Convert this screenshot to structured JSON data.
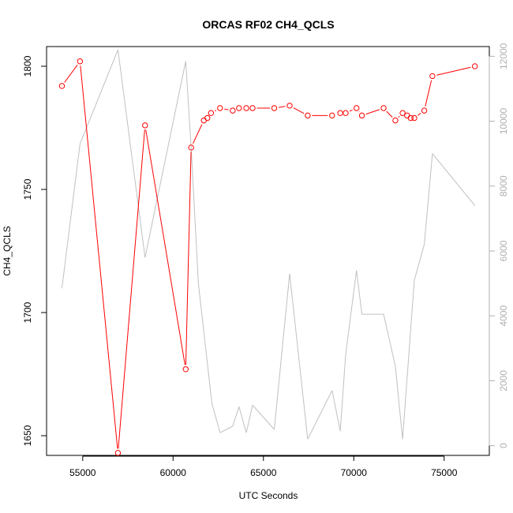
{
  "chart_data": {
    "type": "line",
    "title": "ORCAS RF02 CH4_QCLS",
    "xlabel": "UTC Seconds",
    "ylabel": "CH4_QCLS",
    "xlim": [
      53000,
      77500
    ],
    "ylim": [
      1642,
      1808
    ],
    "y2lim": [
      -300,
      12300
    ],
    "x_ticks": [
      55000,
      60000,
      65000,
      70000,
      75000
    ],
    "y_ticks": [
      1650,
      1700,
      1750,
      1800
    ],
    "y2_ticks": [
      0,
      2000,
      4000,
      6000,
      8000,
      10000,
      12000
    ],
    "x_tick_labels": [
      "55000",
      "60000",
      "65000",
      "70000",
      "75000"
    ],
    "y_tick_labels": [
      "1650",
      "1700",
      "1750",
      "1800"
    ],
    "y2_tick_labels": [
      "0",
      "2000",
      "4000",
      "6000",
      "8000",
      "10000",
      "12000"
    ],
    "series": [
      {
        "axis": "left",
        "color": "#ff0000",
        "style": "line+circles",
        "x": [
          53850,
          54850,
          56950,
          58450,
          60700,
          61000,
          61700,
          61900,
          62100,
          62600,
          63300,
          63650,
          64050,
          64400,
          65600,
          66450,
          67450,
          68800,
          69250,
          69550,
          70150,
          70450,
          71650,
          72300,
          72700,
          72950,
          73150,
          73350,
          73900,
          74350,
          76700
        ],
        "y": [
          1792,
          1802,
          1643,
          1776,
          1677,
          1767,
          1778,
          1779,
          1781,
          1783,
          1782,
          1783,
          1783,
          1783,
          1783,
          1784,
          1780,
          1780,
          1781,
          1781,
          1783,
          1780,
          1783,
          1778,
          1781,
          1780,
          1779,
          1779,
          1782,
          1796,
          1800
        ]
      },
      {
        "axis": "right",
        "color": "#c0c0c0",
        "style": "line",
        "x": [
          53850,
          54850,
          56950,
          58450,
          60700,
          61000,
          61400,
          62150,
          62600,
          63300,
          63650,
          64050,
          64400,
          65600,
          66450,
          67450,
          68800,
          69250,
          69550,
          70150,
          70450,
          71650,
          72300,
          72700,
          73350,
          73900,
          74350,
          76700
        ],
        "y": [
          4850,
          9300,
          12200,
          5800,
          11850,
          9200,
          5000,
          1300,
          400,
          600,
          1200,
          400,
          1250,
          500,
          5300,
          200,
          1700,
          450,
          2800,
          5400,
          4050,
          4050,
          2450,
          200,
          5100,
          6200,
          9000,
          7400
        ]
      }
    ],
    "grid": false,
    "legend": "none",
    "colors": {
      "primary_series": "#ff0000",
      "secondary_series": "#c0c0c0",
      "secondary_axis": "#b0b0b0",
      "axis": "#000000"
    }
  }
}
